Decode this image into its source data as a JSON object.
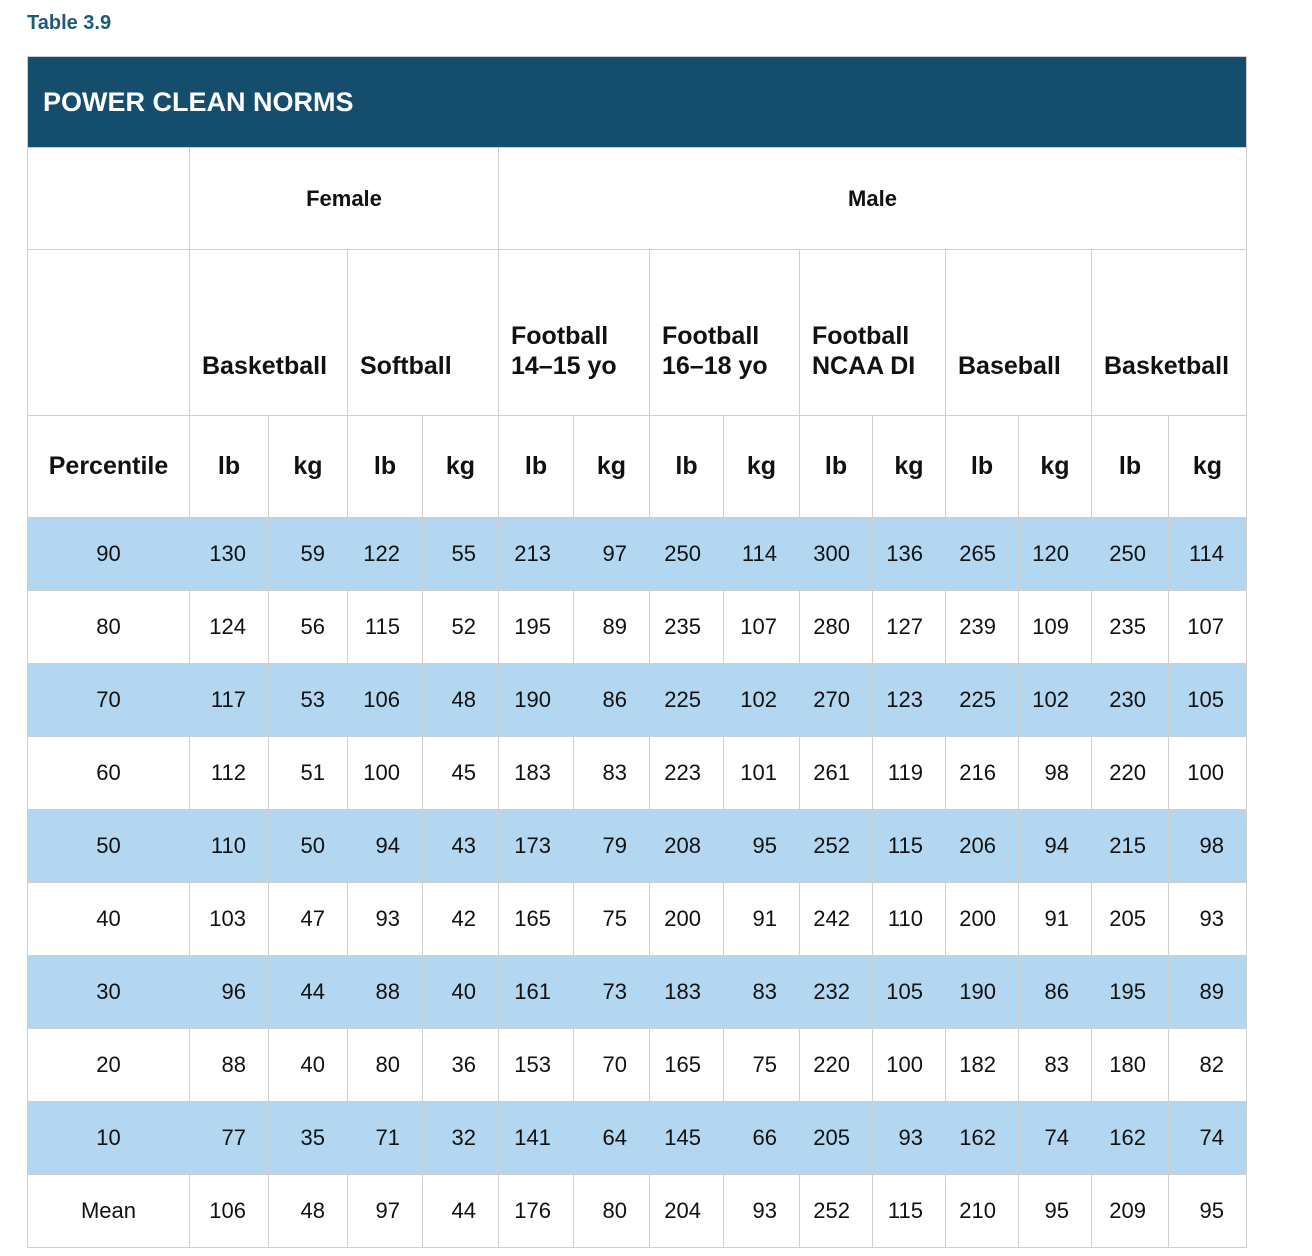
{
  "caption": "Table 3.9",
  "table": {
    "title": "POWER CLEAN NORMS",
    "groups": [
      {
        "name": "Female",
        "span": 2
      },
      {
        "name": "Male",
        "span": 5
      }
    ],
    "sports": [
      [
        "Basketball"
      ],
      [
        "Softball"
      ],
      [
        "Football",
        "14–15 yo"
      ],
      [
        "Football",
        "16–18 yo"
      ],
      [
        "Football",
        "NCAA DI"
      ],
      [
        "Baseball"
      ],
      [
        "Basketball"
      ]
    ],
    "row_header": "Percentile",
    "units": [
      "lb",
      "kg",
      "lb",
      "kg",
      "lb",
      "kg",
      "lb",
      "kg",
      "lb",
      "kg",
      "lb",
      "kg",
      "lb",
      "kg"
    ],
    "rows": [
      {
        "label": "90",
        "values": [
          130,
          59,
          122,
          55,
          213,
          97,
          250,
          114,
          300,
          136,
          265,
          120,
          250,
          114
        ]
      },
      {
        "label": "80",
        "values": [
          124,
          56,
          115,
          52,
          195,
          89,
          235,
          107,
          280,
          127,
          239,
          109,
          235,
          107
        ]
      },
      {
        "label": "70",
        "values": [
          117,
          53,
          106,
          48,
          190,
          86,
          225,
          102,
          270,
          123,
          225,
          102,
          230,
          105
        ]
      },
      {
        "label": "60",
        "values": [
          112,
          51,
          100,
          45,
          183,
          83,
          223,
          101,
          261,
          119,
          216,
          98,
          220,
          100
        ]
      },
      {
        "label": "50",
        "values": [
          110,
          50,
          94,
          43,
          173,
          79,
          208,
          95,
          252,
          115,
          206,
          94,
          215,
          98
        ]
      },
      {
        "label": "40",
        "values": [
          103,
          47,
          93,
          42,
          165,
          75,
          200,
          91,
          242,
          110,
          200,
          91,
          205,
          93
        ]
      },
      {
        "label": "30",
        "values": [
          96,
          44,
          88,
          40,
          161,
          73,
          183,
          83,
          232,
          105,
          190,
          86,
          195,
          89
        ]
      },
      {
        "label": "20",
        "values": [
          88,
          40,
          80,
          36,
          153,
          70,
          165,
          75,
          220,
          100,
          182,
          83,
          180,
          82
        ]
      },
      {
        "label": "10",
        "values": [
          77,
          35,
          71,
          32,
          141,
          64,
          145,
          66,
          205,
          93,
          162,
          74,
          162,
          74
        ]
      },
      {
        "label": "Mean",
        "values": [
          106,
          48,
          97,
          44,
          176,
          80,
          204,
          93,
          252,
          115,
          210,
          95,
          209,
          95
        ]
      }
    ]
  }
}
